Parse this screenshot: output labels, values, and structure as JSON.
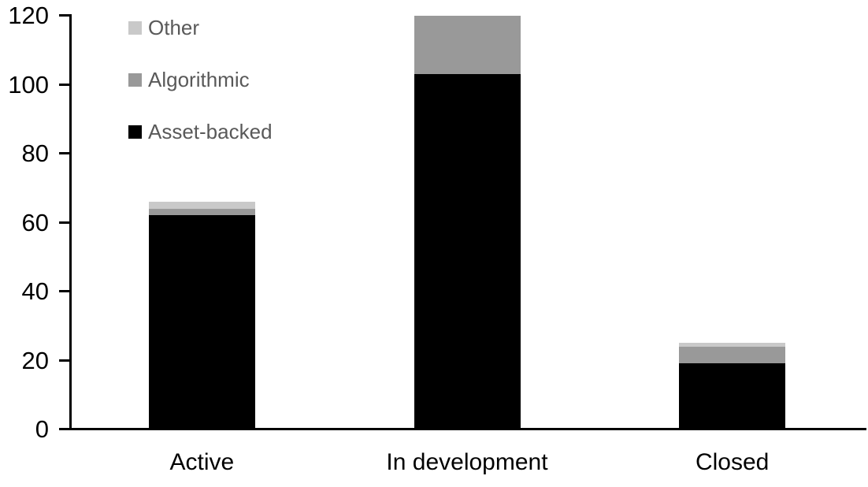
{
  "chart_data": {
    "type": "bar",
    "stacked": true,
    "title": "",
    "xlabel": "",
    "ylabel": "",
    "categories": [
      "Active",
      "In development",
      "Closed"
    ],
    "series": [
      {
        "name": "Asset-backed",
        "color": "#000000",
        "values": [
          62,
          103,
          19
        ]
      },
      {
        "name": "Algorithmic",
        "color": "#999999",
        "values": [
          2,
          17,
          5
        ]
      },
      {
        "name": "Other",
        "color": "#c9c9c9",
        "values": [
          2,
          0,
          1
        ]
      }
    ],
    "totals": [
      66,
      120,
      25
    ],
    "y_ticks": [
      0,
      20,
      40,
      60,
      80,
      100,
      120
    ],
    "ylim": [
      0,
      120
    ],
    "grid": false,
    "legend_position": "top-left",
    "legend_order_top_to_bottom": [
      "Other",
      "Algorithmic",
      "Asset-backed"
    ]
  },
  "colors": {
    "axis": "#000000",
    "tick_label_text": "#000000",
    "category_label_text": "#000000",
    "legend_text": "#595959",
    "background": "#ffffff"
  }
}
